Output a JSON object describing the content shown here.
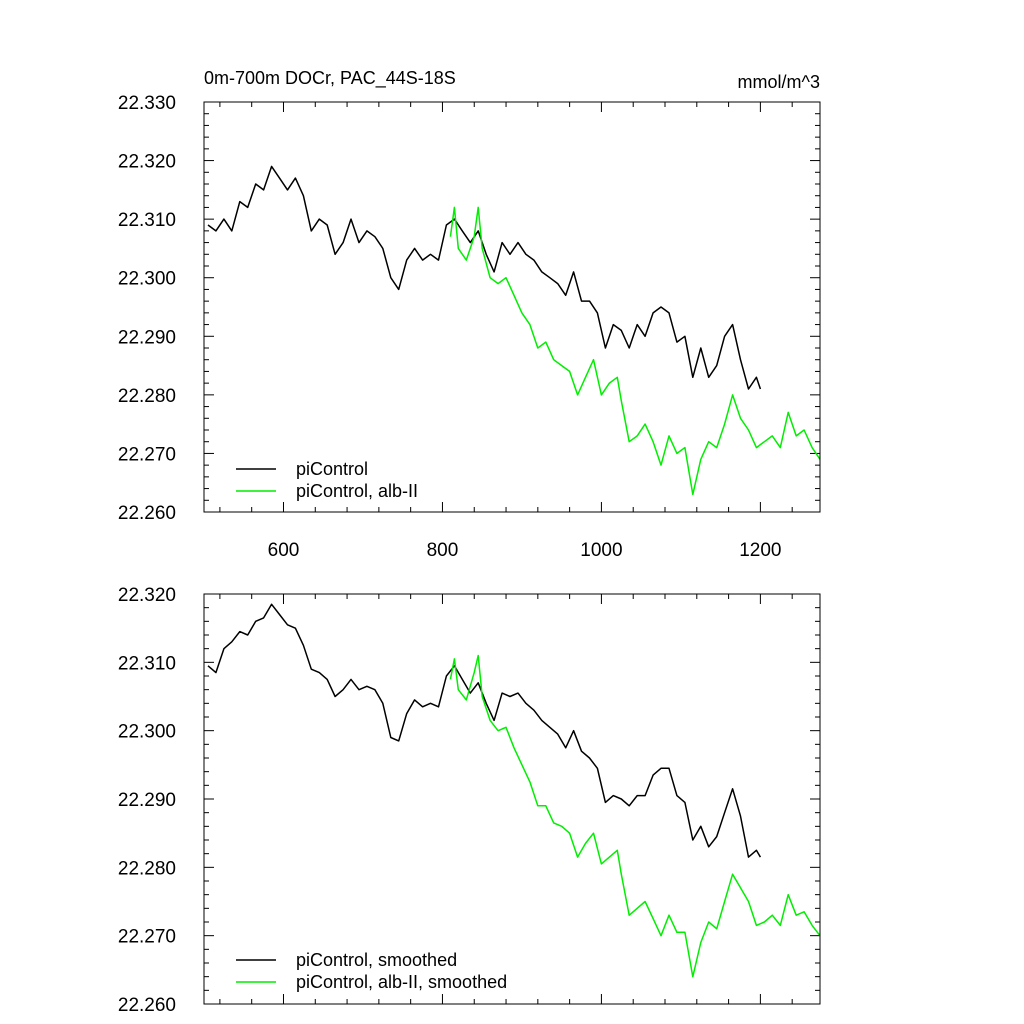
{
  "chart_data": [
    {
      "type": "line",
      "title": "0m-700m DOCr, PAC_44S-18S",
      "units": "mmol/m^3",
      "xlim": [
        500,
        1275
      ],
      "ylim": [
        22.26,
        22.33
      ],
      "xticks": [
        "600",
        "800",
        "1000",
        "1200"
      ],
      "yticks": [
        "22.260",
        "22.270",
        "22.280",
        "22.290",
        "22.300",
        "22.310",
        "22.320",
        "22.330"
      ],
      "legend_position": "bottom-left",
      "grid": false,
      "series": [
        {
          "name": "piControl",
          "color": "#000000",
          "x": [
            505,
            515,
            525,
            535,
            545,
            555,
            565,
            575,
            585,
            595,
            605,
            615,
            625,
            635,
            645,
            655,
            665,
            675,
            685,
            695,
            705,
            715,
            725,
            735,
            745,
            755,
            765,
            775,
            785,
            795,
            805,
            815,
            825,
            835,
            845,
            855,
            865,
            875,
            885,
            895,
            905,
            915,
            925,
            935,
            945,
            955,
            965,
            975,
            985,
            995,
            1005,
            1015,
            1025,
            1035,
            1045,
            1055,
            1065,
            1075,
            1085,
            1095,
            1105,
            1115,
            1125,
            1135,
            1145,
            1155,
            1165,
            1175,
            1185,
            1195,
            1200
          ],
          "y": [
            22.309,
            22.308,
            22.31,
            22.308,
            22.313,
            22.312,
            22.316,
            22.315,
            22.319,
            22.317,
            22.315,
            22.317,
            22.314,
            22.308,
            22.31,
            22.309,
            22.304,
            22.306,
            22.31,
            22.306,
            22.308,
            22.307,
            22.305,
            22.3,
            22.298,
            22.303,
            22.305,
            22.303,
            22.304,
            22.303,
            22.309,
            22.31,
            22.308,
            22.306,
            22.308,
            22.304,
            22.301,
            22.306,
            22.304,
            22.306,
            22.304,
            22.303,
            22.301,
            22.3,
            22.299,
            22.297,
            22.301,
            22.296,
            22.296,
            22.294,
            22.288,
            22.292,
            22.291,
            22.288,
            22.292,
            22.29,
            22.294,
            22.295,
            22.294,
            22.289,
            22.29,
            22.283,
            22.288,
            22.283,
            22.285,
            22.29,
            22.292,
            22.286,
            22.281,
            22.283,
            22.281
          ]
        },
        {
          "name": "piControl, alb-II",
          "color": "#00ee00",
          "x": [
            810,
            815,
            820,
            830,
            840,
            845,
            850,
            860,
            870,
            880,
            890,
            900,
            910,
            920,
            930,
            940,
            950,
            960,
            970,
            980,
            990,
            1000,
            1010,
            1020,
            1025,
            1035,
            1045,
            1055,
            1065,
            1075,
            1085,
            1095,
            1105,
            1115,
            1125,
            1135,
            1145,
            1155,
            1165,
            1175,
            1185,
            1195,
            1205,
            1215,
            1225,
            1235,
            1245,
            1255,
            1265,
            1275
          ],
          "y": [
            22.307,
            22.312,
            22.305,
            22.303,
            22.307,
            22.312,
            22.305,
            22.3,
            22.299,
            22.3,
            22.297,
            22.294,
            22.292,
            22.288,
            22.289,
            22.286,
            22.285,
            22.284,
            22.28,
            22.283,
            22.286,
            22.28,
            22.282,
            22.283,
            22.279,
            22.272,
            22.273,
            22.275,
            22.272,
            22.268,
            22.273,
            22.27,
            22.271,
            22.263,
            22.269,
            22.272,
            22.271,
            22.275,
            22.28,
            22.276,
            22.274,
            22.271,
            22.272,
            22.273,
            22.271,
            22.277,
            22.273,
            22.274,
            22.271,
            22.269
          ]
        }
      ]
    },
    {
      "type": "line",
      "xlim": [
        500,
        1275
      ],
      "ylim": [
        22.26,
        22.32
      ],
      "yticks": [
        "22.260",
        "22.270",
        "22.280",
        "22.290",
        "22.300",
        "22.310",
        "22.320"
      ],
      "legend_position": "bottom-left",
      "grid": false,
      "series": [
        {
          "name": "piControl, smoothed",
          "color": "#000000",
          "x": [
            505,
            515,
            525,
            535,
            545,
            555,
            565,
            575,
            585,
            595,
            605,
            615,
            625,
            635,
            645,
            655,
            665,
            675,
            685,
            695,
            705,
            715,
            725,
            735,
            745,
            755,
            765,
            775,
            785,
            795,
            805,
            815,
            825,
            835,
            845,
            855,
            865,
            875,
            885,
            895,
            905,
            915,
            925,
            935,
            945,
            955,
            965,
            975,
            985,
            995,
            1005,
            1015,
            1025,
            1035,
            1045,
            1055,
            1065,
            1075,
            1085,
            1095,
            1105,
            1115,
            1125,
            1135,
            1145,
            1155,
            1165,
            1175,
            1185,
            1195,
            1200
          ],
          "y": [
            22.3095,
            22.3085,
            22.312,
            22.313,
            22.3145,
            22.314,
            22.316,
            22.3165,
            22.3185,
            22.317,
            22.3155,
            22.315,
            22.3125,
            22.309,
            22.3085,
            22.3075,
            22.305,
            22.306,
            22.3075,
            22.306,
            22.3065,
            22.306,
            22.304,
            22.299,
            22.2985,
            22.3025,
            22.3045,
            22.3035,
            22.304,
            22.3035,
            22.308,
            22.3095,
            22.3075,
            22.3055,
            22.307,
            22.304,
            22.3015,
            22.3055,
            22.305,
            22.3055,
            22.304,
            22.303,
            22.3015,
            22.3005,
            22.2995,
            22.2975,
            22.3,
            22.297,
            22.296,
            22.2945,
            22.2895,
            22.2905,
            22.29,
            22.289,
            22.2905,
            22.2905,
            22.2935,
            22.2945,
            22.2945,
            22.2905,
            22.2895,
            22.284,
            22.286,
            22.283,
            22.2845,
            22.288,
            22.2915,
            22.2875,
            22.2815,
            22.2825,
            22.2815
          ]
        },
        {
          "name": "piControl, alb-II, smoothed",
          "color": "#00ee00",
          "x": [
            810,
            815,
            820,
            830,
            840,
            845,
            850,
            860,
            870,
            880,
            890,
            900,
            910,
            920,
            930,
            940,
            950,
            960,
            970,
            980,
            990,
            1000,
            1010,
            1020,
            1025,
            1035,
            1045,
            1055,
            1065,
            1075,
            1085,
            1095,
            1105,
            1115,
            1125,
            1135,
            1145,
            1155,
            1165,
            1175,
            1185,
            1195,
            1205,
            1215,
            1225,
            1235,
            1245,
            1255,
            1265,
            1275
          ],
          "y": [
            22.3075,
            22.3105,
            22.306,
            22.3045,
            22.3085,
            22.311,
            22.305,
            22.3015,
            22.3,
            22.3005,
            22.2975,
            22.295,
            22.2925,
            22.289,
            22.289,
            22.2865,
            22.286,
            22.285,
            22.2815,
            22.2835,
            22.285,
            22.2805,
            22.2815,
            22.2825,
            22.279,
            22.273,
            22.274,
            22.275,
            22.2725,
            22.27,
            22.273,
            22.2705,
            22.2705,
            22.264,
            22.269,
            22.272,
            22.271,
            22.275,
            22.279,
            22.277,
            22.275,
            22.2715,
            22.272,
            22.273,
            22.2715,
            22.276,
            22.273,
            22.2735,
            22.2715,
            22.27
          ]
        }
      ]
    }
  ]
}
